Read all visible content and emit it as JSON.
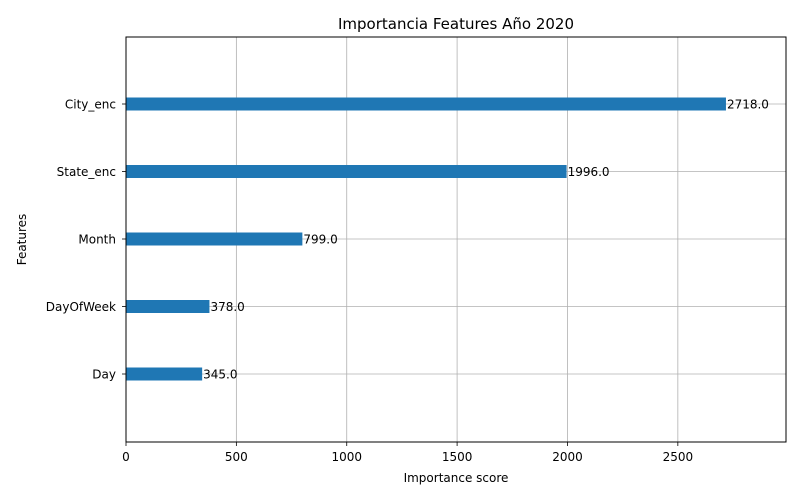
{
  "chart_data": {
    "type": "bar",
    "orientation": "horizontal",
    "title": "Importancia Features Año 2020",
    "xlabel": "Importance score",
    "ylabel": "Features",
    "categories": [
      "City_enc",
      "State_enc",
      "Month",
      "DayOfWeek",
      "Day"
    ],
    "values": [
      2718.0,
      1996.0,
      799.0,
      378.0,
      345.0
    ],
    "value_labels": [
      "2718.0",
      "1996.0",
      "799.0",
      "378.0",
      "345.0"
    ],
    "xlim": [
      0,
      2990
    ],
    "xticks": [
      0,
      500,
      1000,
      1500,
      2000,
      2500
    ],
    "xtick_labels": [
      "0",
      "500",
      "1000",
      "1500",
      "2000",
      "2500"
    ],
    "grid": true,
    "bar_color": "#1f77b4"
  }
}
